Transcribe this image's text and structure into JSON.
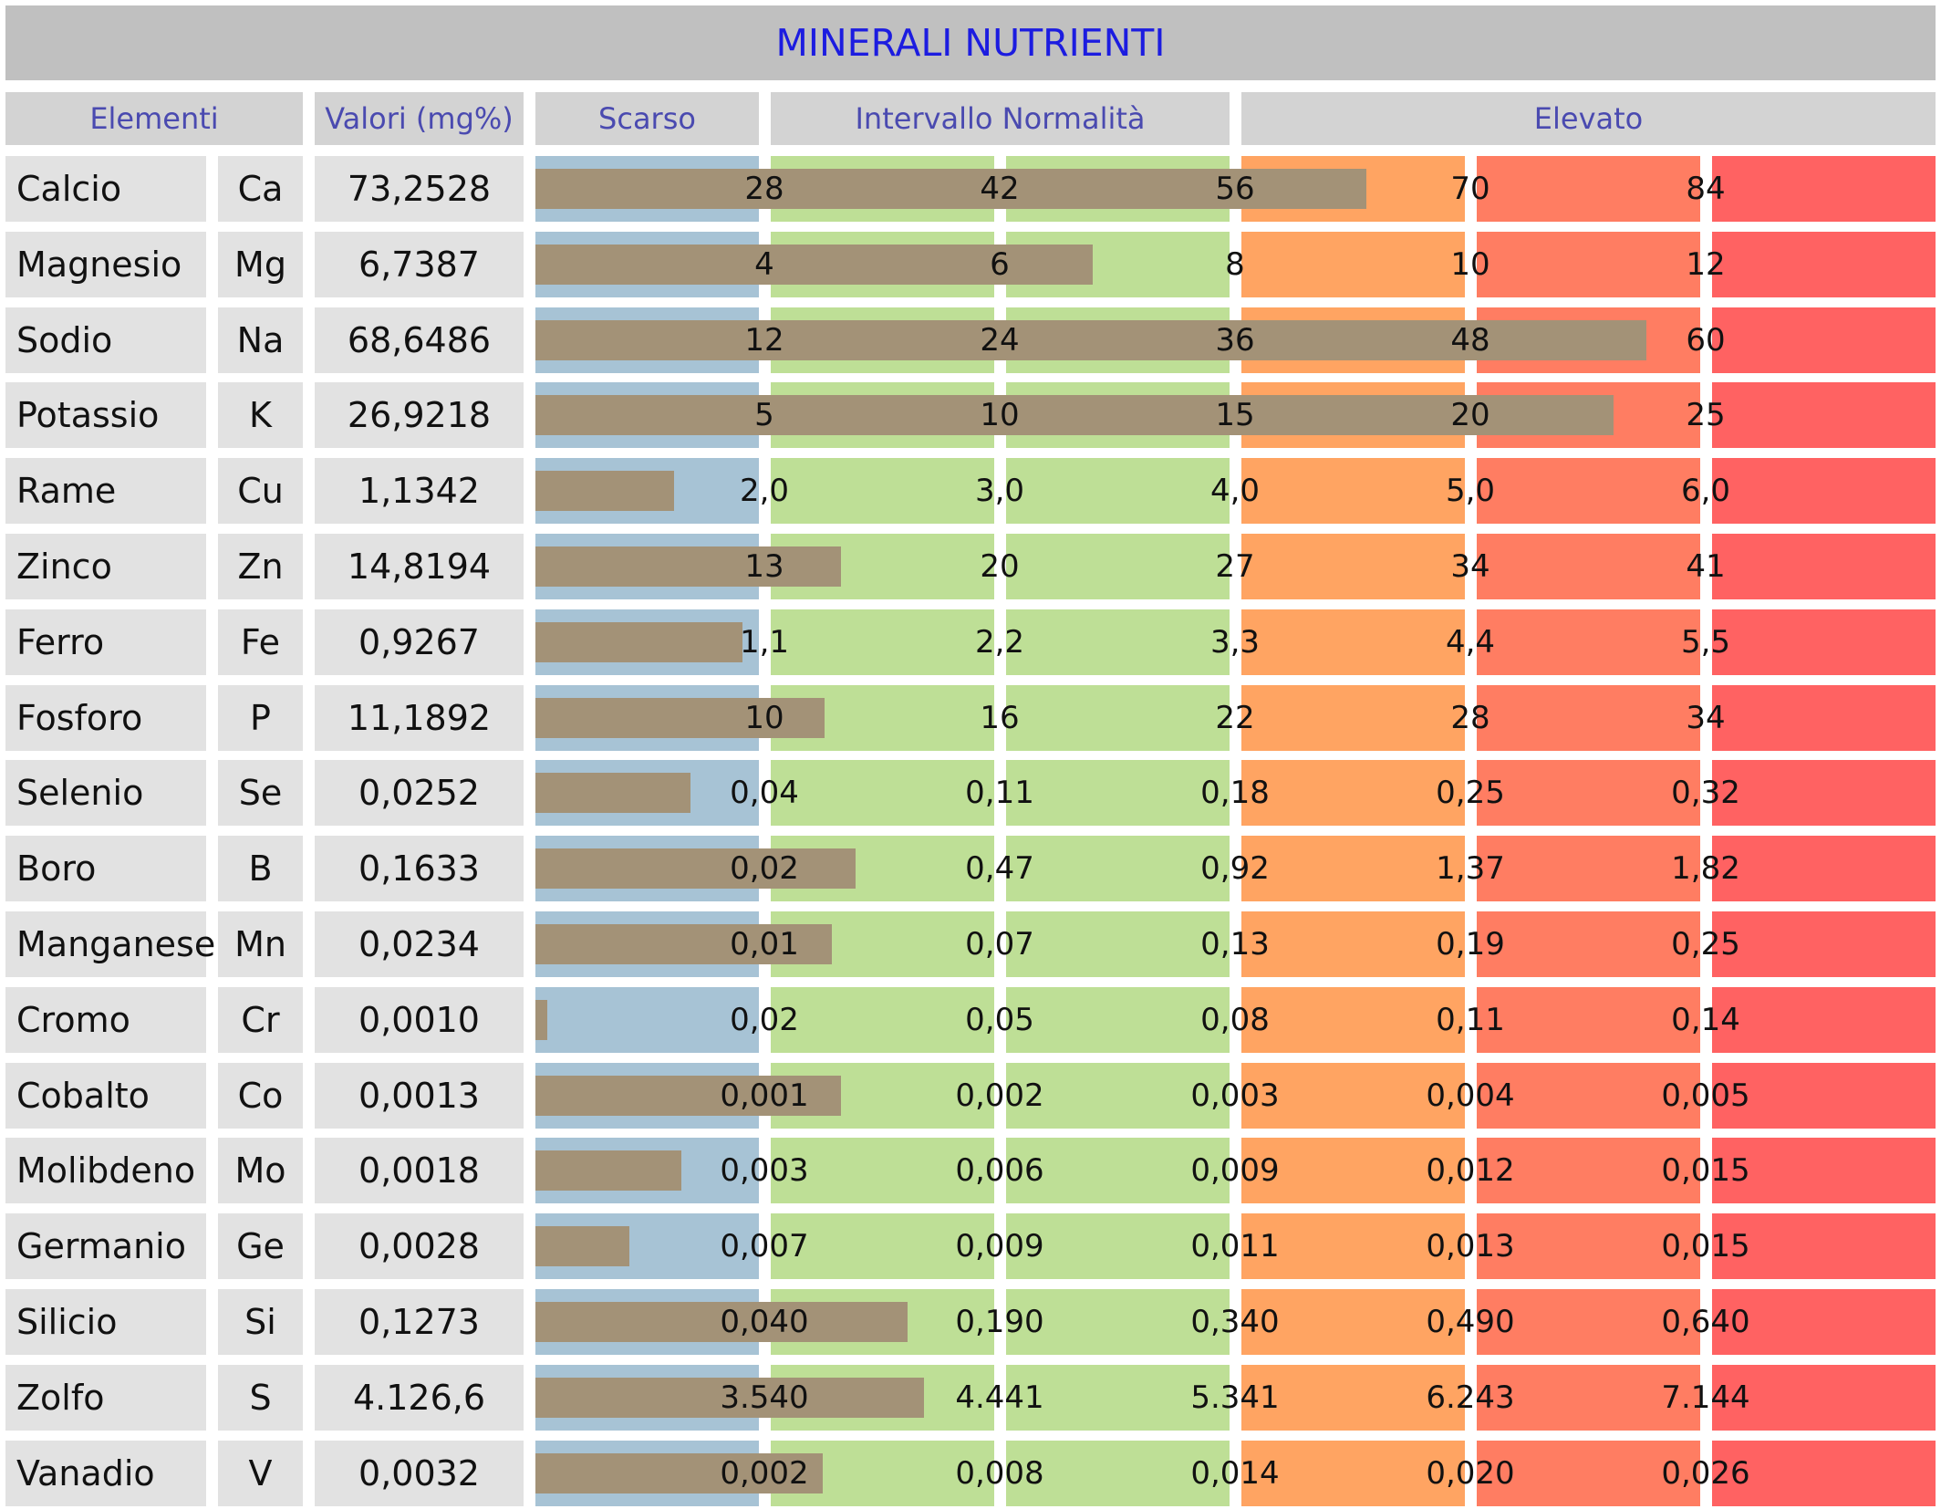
{
  "title": "MINERALI NUTRIENTI",
  "headers": {
    "elementi": "Elementi",
    "valori": "Valori (mg%)",
    "scarso": "Scarso",
    "normalita": "Intervallo Normalità",
    "elevato": "Elevato"
  },
  "colors": {
    "scarso": "#a7c3d5",
    "normale": "#bedf96",
    "elevato_1": "#ffa462",
    "elevato_2": "#ff7d62",
    "elevato_3": "#ff6262",
    "bar": "#a39277"
  },
  "rows": [
    {
      "name": "Calcio",
      "symbol": "Ca",
      "value": "73,2528",
      "thresholds": [
        "28",
        "42",
        "56",
        "70",
        "84"
      ],
      "level": 3.53
    },
    {
      "name": "Magnesio",
      "symbol": "Mg",
      "value": "6,7387",
      "thresholds": [
        "4",
        "6",
        "8",
        "10",
        "12"
      ],
      "level": 2.37
    },
    {
      "name": "Sodio",
      "symbol": "Na",
      "value": "68,6486",
      "thresholds": [
        "12",
        "24",
        "36",
        "48",
        "60"
      ],
      "level": 4.72
    },
    {
      "name": "Potassio",
      "symbol": "K",
      "value": "26,9218",
      "thresholds": [
        "5",
        "10",
        "15",
        "20",
        "25"
      ],
      "level": 4.58
    },
    {
      "name": "Rame",
      "symbol": "Cu",
      "value": "1,1342",
      "thresholds": [
        "2,0",
        "3,0",
        "4,0",
        "5,0",
        "6,0"
      ],
      "level": 0.59
    },
    {
      "name": "Zinco",
      "symbol": "Zn",
      "value": "14,8194",
      "thresholds": [
        "13",
        "20",
        "27",
        "34",
        "41"
      ],
      "level": 1.3
    },
    {
      "name": "Ferro",
      "symbol": "Fe",
      "value": "0,9267",
      "thresholds": [
        "1,1",
        "2,2",
        "3,3",
        "4,4",
        "5,5"
      ],
      "level": 0.88
    },
    {
      "name": "Fosforo",
      "symbol": "P",
      "value": "11,1892",
      "thresholds": [
        "10",
        "16",
        "22",
        "28",
        "34"
      ],
      "level": 1.23
    },
    {
      "name": "Selenio",
      "symbol": "Se",
      "value": "0,0252",
      "thresholds": [
        "0,04",
        "0,11",
        "0,18",
        "0,25",
        "0,32"
      ],
      "level": 0.66
    },
    {
      "name": "Boro",
      "symbol": "B",
      "value": "0,1633",
      "thresholds": [
        "0,02",
        "0,47",
        "0,92",
        "1,37",
        "1,82"
      ],
      "level": 1.36
    },
    {
      "name": "Manganese",
      "symbol": "Mn",
      "value": "0,0234",
      "thresholds": [
        "0,01",
        "0,07",
        "0,13",
        "0,19",
        "0,25"
      ],
      "level": 1.26
    },
    {
      "name": "Cromo",
      "symbol": "Cr",
      "value": "0,0010",
      "thresholds": [
        "0,02",
        "0,05",
        "0,08",
        "0,11",
        "0,14"
      ],
      "level": 0.05
    },
    {
      "name": "Cobalto",
      "symbol": "Co",
      "value": "0,0013",
      "thresholds": [
        "0,001",
        "0,002",
        "0,003",
        "0,004",
        "0,005"
      ],
      "level": 1.3
    },
    {
      "name": "Molibdeno",
      "symbol": "Mo",
      "value": "0,0018",
      "thresholds": [
        "0,003",
        "0,006",
        "0,009",
        "0,012",
        "0,015"
      ],
      "level": 0.62
    },
    {
      "name": "Germanio",
      "symbol": "Ge",
      "value": "0,0028",
      "thresholds": [
        "0,007",
        "0,009",
        "0,011",
        "0,013",
        "0,015"
      ],
      "level": 0.4
    },
    {
      "name": "Silicio",
      "symbol": "Si",
      "value": "0,1273",
      "thresholds": [
        "0,040",
        "0,190",
        "0,340",
        "0,490",
        "0,640"
      ],
      "level": 1.58
    },
    {
      "name": "Zolfo",
      "symbol": "S",
      "value": "4.126,6",
      "thresholds": [
        "3.540",
        "4.441",
        "5.341",
        "6.243",
        "7.144"
      ],
      "level": 1.65
    },
    {
      "name": "Vanadio",
      "symbol": "V",
      "value": "0,0032",
      "thresholds": [
        "0,002",
        "0,008",
        "0,014",
        "0,020",
        "0,026"
      ],
      "level": 1.22
    }
  ]
}
